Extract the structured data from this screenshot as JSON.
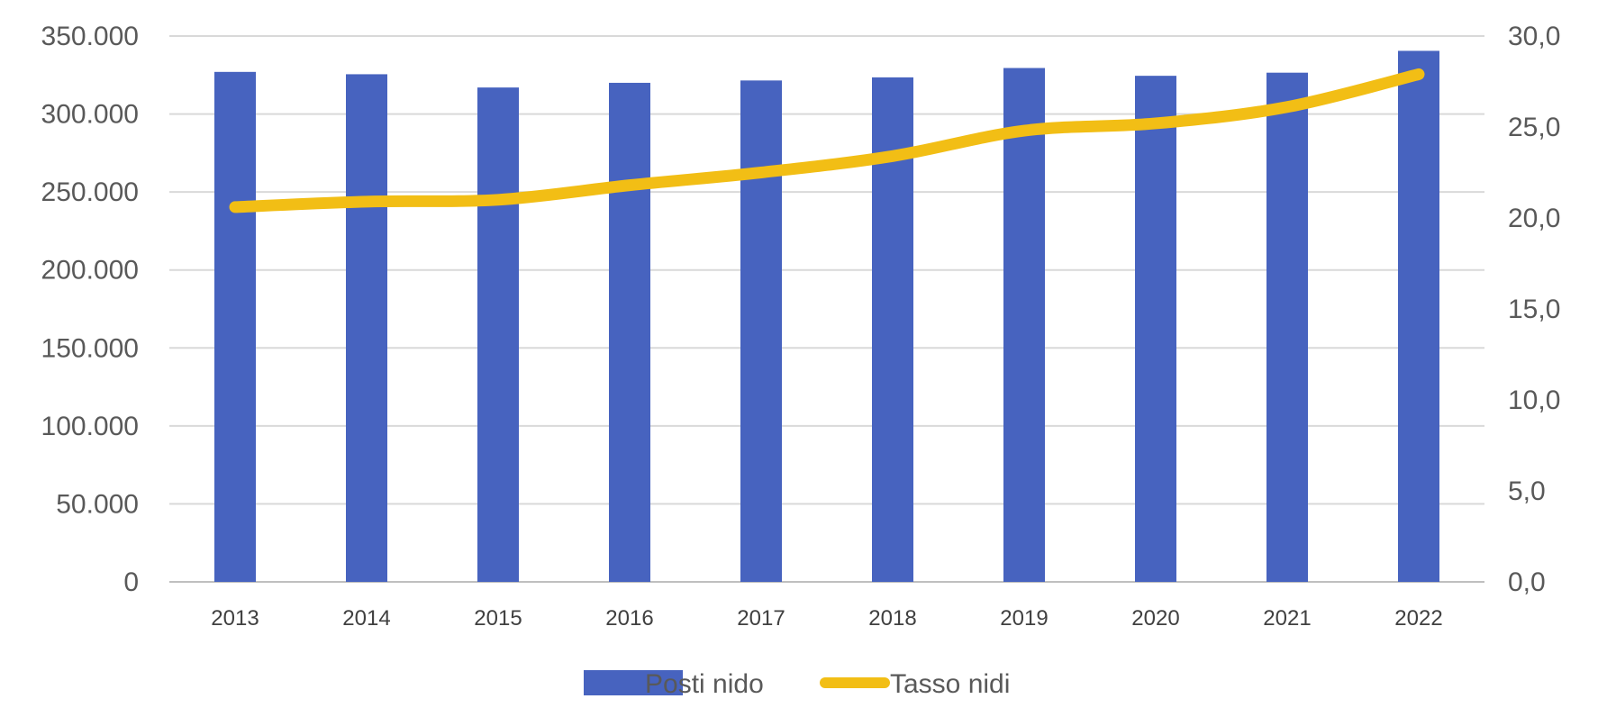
{
  "chart_data": {
    "type": "bar",
    "title": "",
    "categories": [
      "2013",
      "2014",
      "2015",
      "2016",
      "2017",
      "2018",
      "2019",
      "2020",
      "2021",
      "2022"
    ],
    "series": [
      {
        "name": "Posti nido",
        "type": "bar",
        "axis": "left",
        "color": "#4763BF",
        "values": [
          327000,
          325500,
          317000,
          320000,
          321500,
          323500,
          329500,
          324500,
          326500,
          340500
        ]
      },
      {
        "name": "Tasso nidi",
        "type": "line",
        "axis": "right",
        "color": "#F2BE15",
        "values": [
          20.6,
          20.9,
          21.0,
          21.8,
          22.5,
          23.4,
          24.8,
          25.2,
          26.1,
          27.9
        ]
      }
    ],
    "y_left": {
      "ylim": [
        0,
        350000
      ],
      "ticks": [
        "0",
        "50.000",
        "100.000",
        "150.000",
        "200.000",
        "250.000",
        "300.000",
        "350.000"
      ]
    },
    "y_right": {
      "ylim": [
        0,
        30
      ],
      "ticks": [
        "0,0",
        "5,0",
        "10,0",
        "15,0",
        "20,0",
        "25,0",
        "30,0"
      ]
    },
    "grid": true,
    "legend": "bottom-center"
  }
}
